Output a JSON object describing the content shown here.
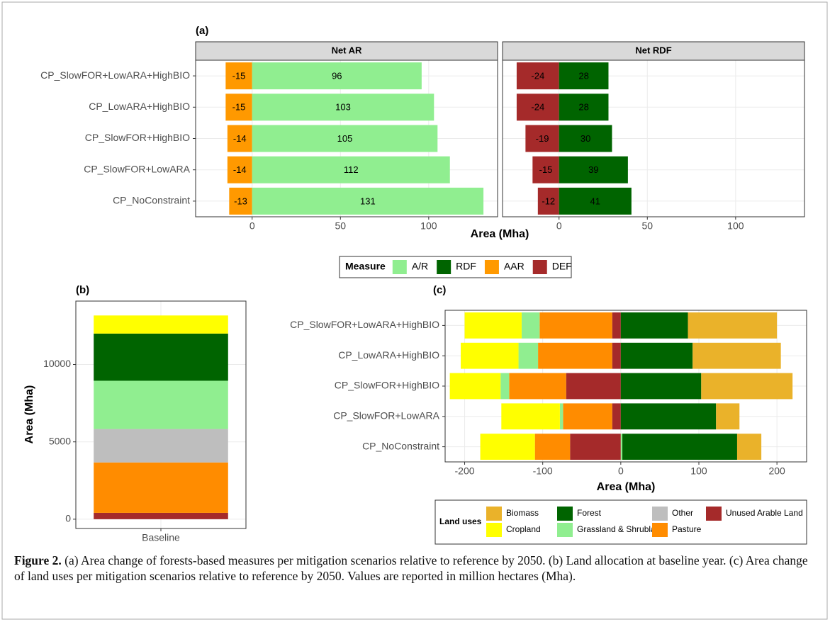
{
  "chart_data": [
    {
      "type": "bar",
      "orientation": "horizontal",
      "label": "(a)",
      "facets": [
        "Net AR",
        "Net RDF"
      ],
      "categories": [
        "CP_SlowFOR+LowARA+HighBIO",
        "CP_LowARA+HighBIO",
        "CP_SlowFOR+HighBIO",
        "CP_SlowFOR+LowARA",
        "CP_NoConstraint"
      ],
      "series": [
        {
          "name": "A/R",
          "facet": "Net AR",
          "color": "#90ee90",
          "values": [
            96,
            103,
            105,
            112,
            131
          ]
        },
        {
          "name": "RDF",
          "facet": "Net RDF",
          "color": "#006400",
          "values": [
            28,
            28,
            30,
            39,
            41
          ]
        },
        {
          "name": "AAR",
          "facet": "Net AR",
          "color": "#ff9900",
          "values": [
            -15,
            -15,
            -14,
            -14,
            -13
          ]
        },
        {
          "name": "DEF",
          "facet": "Net RDF",
          "color": "#a52a2a",
          "values": [
            -24,
            -24,
            -19,
            -15,
            -12
          ]
        }
      ],
      "xlabel": "Area (Mha)",
      "xlim": [
        -32,
        139
      ],
      "xticks": [
        0,
        50,
        100
      ],
      "legend_title": "Measure",
      "grid": true,
      "data_labels": true
    },
    {
      "type": "stacked_bar",
      "orientation": "vertical",
      "label": "(b)",
      "categories": [
        "Baseline"
      ],
      "series": [
        {
          "color": "#a52a2a",
          "values": [
            410
          ]
        },
        {
          "color": "#ff8c00",
          "values": [
            3260
          ]
        },
        {
          "color": "#bebebe",
          "values": [
            2160
          ]
        },
        {
          "color": "#90ee90",
          "values": [
            3120
          ]
        },
        {
          "color": "#006400",
          "values": [
            3050
          ]
        },
        {
          "color": "#ffff00",
          "values": [
            1170
          ]
        }
      ],
      "ylabel": "Area (Mha)",
      "ylim": [
        -600,
        14100
      ],
      "yticks": [
        0,
        5000,
        10000
      ],
      "grid": true
    },
    {
      "type": "stacked_bar",
      "orientation": "horizontal",
      "label": "(c)",
      "categories": [
        "CP_SlowFOR+LowARA+HighBIO",
        "CP_LowARA+HighBIO",
        "CP_SlowFOR+HighBIO",
        "CP_SlowFOR+LowARA",
        "CP_NoConstraint"
      ],
      "series": [
        {
          "name": "Biomass",
          "color": "#eab22a",
          "values": [
            114,
            113,
            117,
            30,
            31
          ]
        },
        {
          "name": "Cropland",
          "color": "#ffff00",
          "values": [
            -73,
            -74,
            -65,
            -75,
            -70
          ]
        },
        {
          "name": "Forest",
          "color": "#006400",
          "values": [
            86,
            92,
            103,
            122,
            147
          ]
        },
        {
          "name": "Grassland & Shrubland",
          "color": "#90ee90",
          "values": [
            -23,
            -25,
            -11,
            -4,
            2
          ]
        },
        {
          "name": "Other",
          "color": "#bebebe",
          "values": [
            0,
            0,
            0,
            0,
            0
          ]
        },
        {
          "name": "Pasture",
          "color": "#ff8c00",
          "values": [
            -93,
            -95,
            -73,
            -63,
            -45
          ]
        },
        {
          "name": "Unused Arable Land",
          "color": "#a52a2a",
          "values": [
            -11,
            -11,
            -70,
            -11,
            -65
          ]
        }
      ],
      "xlabel": "Area (Mha)",
      "xlim": [
        -225,
        238
      ],
      "xticks": [
        -200,
        -100,
        0,
        100,
        200
      ],
      "legend_title": "Land uses",
      "grid": true,
      "data_labels": false
    }
  ],
  "caption": {
    "label": "Figure 2.",
    "text": "(a) Area change of forests-based measures per mitigation scenarios relative to reference by 2050. (b) Land allocation at baseline year. (c) Area change of land uses per mitigation scenarios relative to reference by 2050. Values are reported in million hectares (Mha)."
  }
}
